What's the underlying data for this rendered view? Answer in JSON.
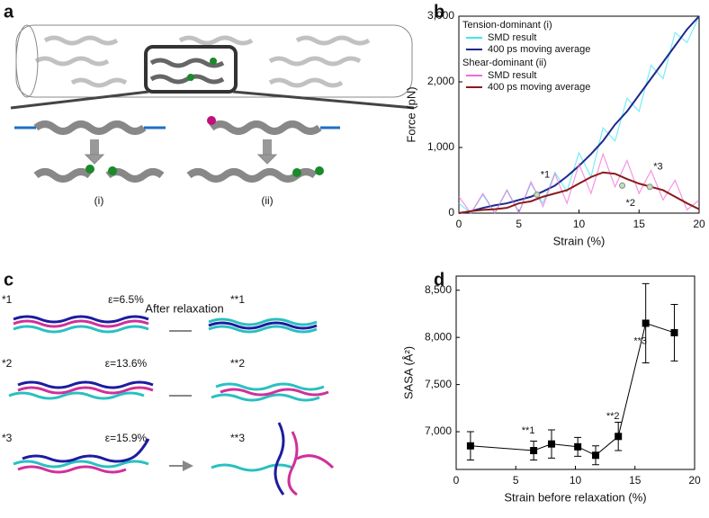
{
  "panel_labels": [
    "a",
    "b",
    "c",
    "d"
  ],
  "panel_a": {
    "labels": [
      "(i)",
      "(ii)"
    ]
  },
  "panel_c": {
    "rows": [
      {
        "before": "*1",
        "strain": "ε=6.5%",
        "after": "**1"
      },
      {
        "before": "*2",
        "strain": "ε=13.6%",
        "after": "**2"
      },
      {
        "before": "*3",
        "strain": "ε=15.9%",
        "after": "**3"
      }
    ],
    "relaxation": "After relaxation"
  },
  "chart_data": [
    {
      "type": "line",
      "xlabel": "Strain (%)",
      "ylabel": "Force (pN)",
      "x": [
        0,
        1,
        2,
        3,
        4,
        5,
        6,
        7,
        8,
        9,
        10,
        11,
        12,
        13,
        14,
        15,
        16,
        17,
        18,
        19,
        20
      ],
      "xlim": [
        0,
        20
      ],
      "xticks": [
        0,
        5,
        10,
        15,
        20
      ],
      "ylim": [
        0,
        3000
      ],
      "yticks": [
        0,
        {
          "value": 1000,
          "label": "1,000"
        },
        {
          "value": 2000,
          "label": "2,000"
        },
        {
          "value": 3000,
          "label": "3,000"
        }
      ],
      "legend_titles": [
        "Tension-dominant (i)",
        "Shear-dominant (ii)"
      ],
      "series": [
        {
          "name": "SMD result",
          "color": "#3ee6f0",
          "values": [
            150,
            0,
            280,
            0,
            350,
            20,
            450,
            150,
            620,
            330,
            920,
            550,
            1300,
            1100,
            1750,
            1550,
            2250,
            2050,
            2750,
            2600,
            3000
          ]
        },
        {
          "name": "400 ps moving average",
          "color": "#1c2a8c",
          "values": [
            0,
            30,
            80,
            120,
            150,
            200,
            250,
            330,
            420,
            560,
            720,
            900,
            1100,
            1350,
            1550,
            1800,
            2050,
            2300,
            2550,
            2800,
            3000
          ]
        },
        {
          "name": "SMD result",
          "color": "#f06ad8",
          "values": [
            250,
            0,
            300,
            0,
            350,
            0,
            480,
            100,
            600,
            150,
            750,
            300,
            900,
            400,
            800,
            300,
            650,
            200,
            500,
            50,
            200
          ]
        },
        {
          "name": "400 ps moving average",
          "color": "#8b1a1a",
          "values": [
            0,
            30,
            50,
            60,
            80,
            150,
            180,
            250,
            300,
            350,
            450,
            550,
            620,
            600,
            520,
            450,
            400,
            350,
            250,
            150,
            60
          ]
        }
      ],
      "annotations": [
        {
          "text": "*1",
          "x": 6.5,
          "y": 280
        },
        {
          "text": "*2",
          "x": 13.6,
          "y": 420
        },
        {
          "text": "*3",
          "x": 15.9,
          "y": 400
        }
      ]
    },
    {
      "type": "errorbar",
      "xlabel": "Strain before relaxation (%)",
      "ylabel": "SASA (Å²)",
      "x": [
        1.2,
        6.5,
        8.0,
        10.2,
        11.7,
        13.6,
        15.9,
        18.3
      ],
      "values": [
        6850,
        6800,
        6870,
        6840,
        6750,
        6950,
        8150,
        8050
      ],
      "errors": [
        150,
        100,
        150,
        100,
        100,
        150,
        420,
        300
      ],
      "color": "#000000",
      "xlim": [
        0,
        20
      ],
      "xticks": [
        0,
        5,
        10,
        15,
        20
      ],
      "ylim": [
        6600,
        8650
      ],
      "yticks": [
        {
          "value": 7000,
          "label": "7,000"
        },
        {
          "value": 7500,
          "label": "7,500"
        },
        {
          "value": 8000,
          "label": "8,000"
        },
        {
          "value": 8500,
          "label": "8,500"
        }
      ],
      "annotations": [
        {
          "text": "**1",
          "x": 6.5,
          "y": 6800
        },
        {
          "text": "**2",
          "x": 13.6,
          "y": 6950
        },
        {
          "text": "**3",
          "x": 15.9,
          "y": 8150
        }
      ]
    }
  ]
}
